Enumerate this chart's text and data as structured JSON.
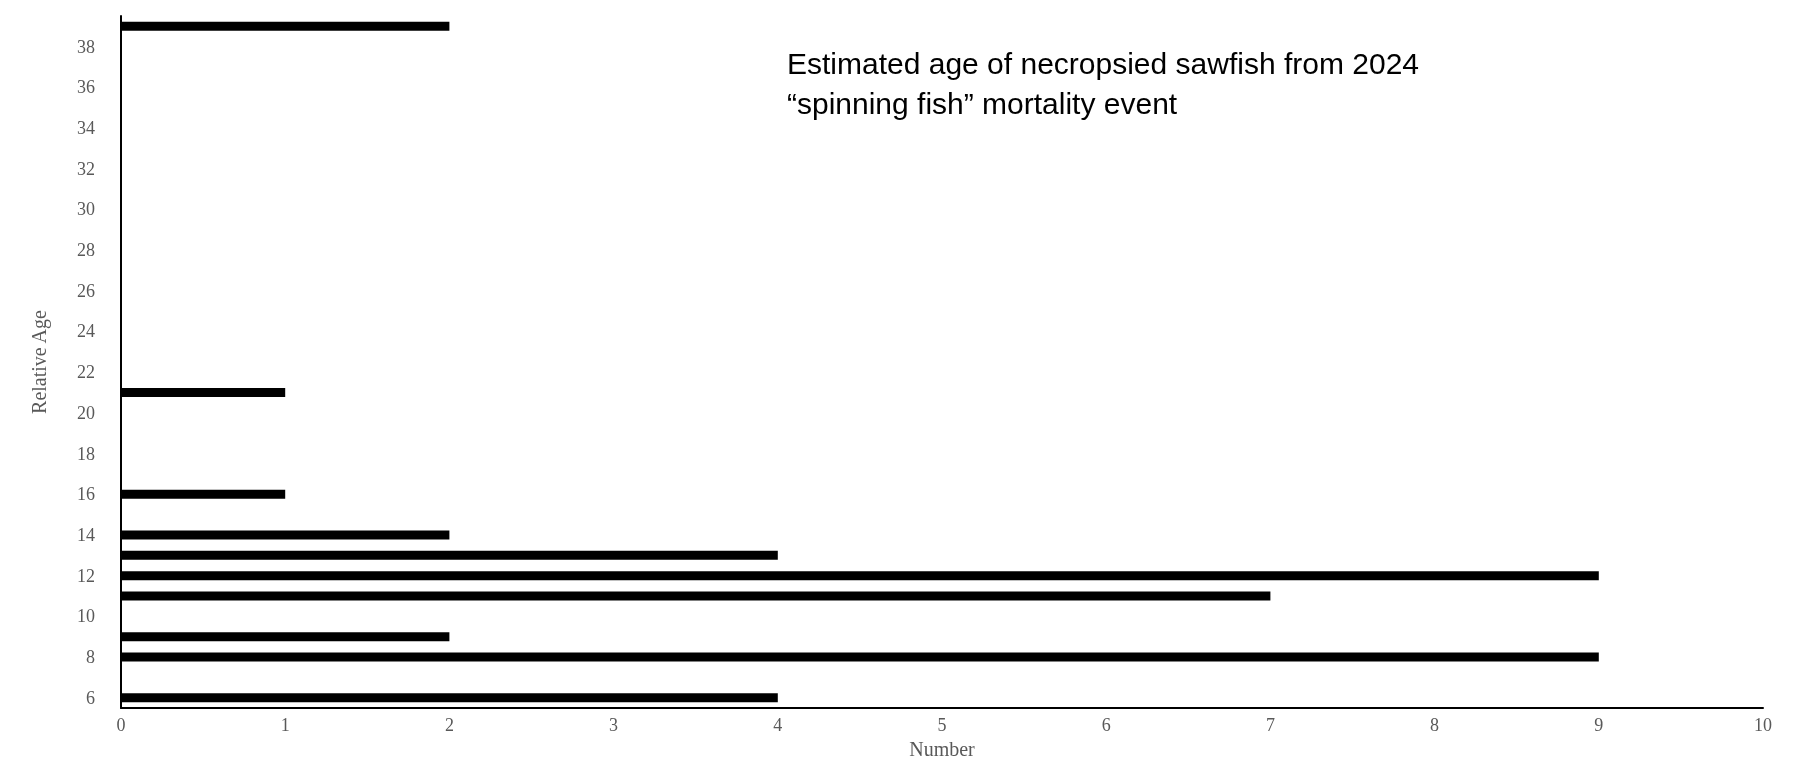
{
  "chart_data": {
    "type": "bar",
    "orientation": "horizontal",
    "title": "Estimated age of necropsied sawfish from 2024 “spinning fish” mortality event",
    "xlabel": "Number",
    "ylabel": "Relative Age",
    "categories": [
      null,
      "38",
      null,
      "36",
      null,
      "34",
      null,
      "32",
      null,
      "30",
      null,
      "28",
      null,
      "26",
      null,
      "24",
      null,
      "22",
      null,
      "20",
      null,
      "18",
      null,
      "16",
      null,
      "14",
      null,
      "12",
      null,
      "10",
      null,
      "8",
      null,
      "6"
    ],
    "values": [
      2,
      0,
      0,
      0,
      0,
      0,
      0,
      0,
      0,
      0,
      0,
      0,
      0,
      0,
      0,
      0,
      0,
      0,
      1,
      0,
      0,
      0,
      0,
      1,
      0,
      2,
      4,
      9,
      7,
      0,
      2,
      9,
      0,
      4
    ],
    "color": "#000000",
    "xlim": [
      0,
      10
    ],
    "xticks": [
      0,
      1,
      2,
      3,
      4,
      5,
      6,
      7,
      8,
      9,
      10
    ],
    "grid": false
  }
}
